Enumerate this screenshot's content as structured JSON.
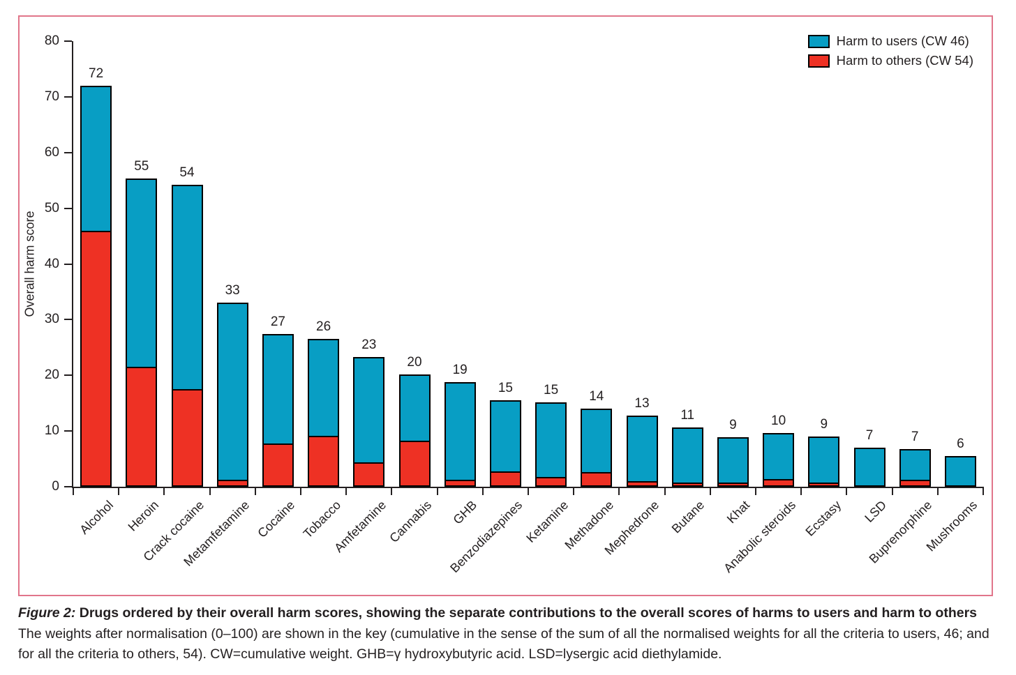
{
  "figure": {
    "caption_label": "Figure 2:",
    "caption_title": "Drugs ordered by their overall harm scores, showing the separate contributions to the overall scores of harms to users and harm to others",
    "caption_body": "The weights after normalisation (0–100) are shown in the key (cumulative in the sense of the sum of all the normalised weights for all the criteria to users, 46; and for all the criteria to others, 54). CW=cumulative weight. GHB=γ hydroxybutyric acid. LSD=lysergic acid diethylamide."
  },
  "chart_data": {
    "type": "bar",
    "stacked": true,
    "title": "",
    "xlabel": "",
    "ylabel": "Overall harm score",
    "ylim": [
      0,
      80
    ],
    "yticks": [
      0,
      10,
      20,
      30,
      40,
      50,
      60,
      70,
      80
    ],
    "grid": false,
    "legend_position": "top-right-inside",
    "categories": [
      "Alcohol",
      "Heroin",
      "Crack cocaine",
      "Metamfetamine",
      "Cocaine",
      "Tobacco",
      "Amfetamine",
      "Cannabis",
      "GHB",
      "Benzodiazepines",
      "Ketamine",
      "Methadone",
      "Mephedrone",
      "Butane",
      "Khat",
      "Anabolic steroids",
      "Ecstasy",
      "LSD",
      "Buprenorphine",
      "Mushrooms"
    ],
    "bar_value_labels": [
      "72",
      "55",
      "54",
      "33",
      "27",
      "26",
      "23",
      "20",
      "19",
      "15",
      "15",
      "14",
      "13",
      "11",
      "9",
      "10",
      "9",
      "7",
      "7",
      "6"
    ],
    "series": [
      {
        "name": "Harm to users (CW 46)",
        "color": "#089EC4",
        "values": [
          26,
          33.8,
          36.7,
          31.8,
          19.6,
          17.3,
          18.9,
          11.8,
          17.5,
          12.7,
          13.4,
          11.4,
          11.8,
          9.9,
          8.1,
          8.3,
          8.3,
          6.8,
          5.5,
          5.4
        ]
      },
      {
        "name": "Harm to others (CW 54)",
        "color": "#EE3124",
        "values": [
          46,
          21.5,
          17.5,
          1.2,
          7.8,
          9.2,
          4.4,
          8.3,
          1.3,
          2.8,
          1.8,
          2.6,
          1.0,
          0.8,
          0.8,
          1.4,
          0.7,
          0.2,
          1.2,
          0.1
        ]
      }
    ],
    "colors": {
      "panel_border": "#E1758A",
      "axis": "#231F20",
      "bar_stroke": "#000000"
    }
  }
}
